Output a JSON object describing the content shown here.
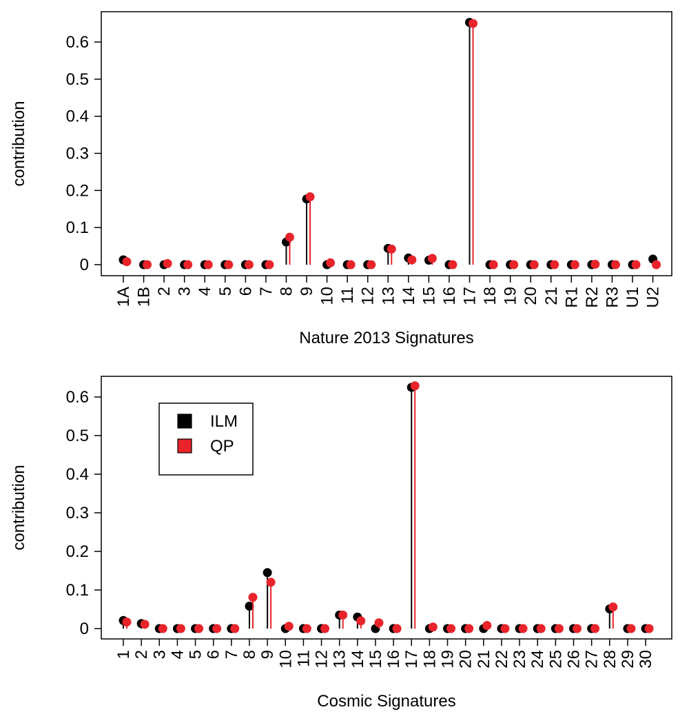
{
  "chart_data": [
    {
      "type": "scatter",
      "xlabel": "Nature 2013 Signatures",
      "ylabel": "contribution",
      "ylim": [
        0,
        0.65
      ],
      "yticks": [
        "0",
        "0.1",
        "0.2",
        "0.3",
        "0.4",
        "0.5",
        "0.6"
      ],
      "grid": false,
      "categories": [
        "1A",
        "1B",
        "2",
        "3",
        "4",
        "5",
        "6",
        "7",
        "8",
        "9",
        "10",
        "11",
        "12",
        "13",
        "14",
        "15",
        "16",
        "17",
        "18",
        "19",
        "20",
        "21",
        "R1",
        "R2",
        "R3",
        "U1",
        "U2"
      ],
      "series": [
        {
          "name": "ILM",
          "color": "#000000",
          "values": [
            0.013,
            0,
            0,
            0,
            0,
            0,
            0,
            0,
            0.061,
            0.177,
            0,
            0,
            0,
            0.044,
            0.018,
            0.012,
            0,
            0.653,
            0,
            0,
            0,
            0,
            0,
            0,
            0,
            0,
            0.015
          ]
        },
        {
          "name": "QP",
          "color": "#e8242a",
          "values": [
            0.008,
            0,
            0.003,
            0,
            0,
            0,
            0,
            0,
            0.074,
            0.183,
            0.005,
            0,
            0,
            0.042,
            0.013,
            0.017,
            0,
            0.65,
            0,
            0,
            0,
            0,
            0,
            0.001,
            0,
            0,
            0
          ]
        }
      ]
    },
    {
      "type": "scatter",
      "xlabel": "Cosmic Signatures",
      "ylabel": "contribution",
      "ylim": [
        0,
        0.65
      ],
      "yticks": [
        "0",
        "0.1",
        "0.2",
        "0.3",
        "0.4",
        "0.5",
        "0.6"
      ],
      "grid": false,
      "legend": {
        "position": "top-left",
        "entries": [
          {
            "label": "ILM",
            "color": "#000000"
          },
          {
            "label": "QP",
            "color": "#e8242a"
          }
        ]
      },
      "categories": [
        "1",
        "2",
        "3",
        "4",
        "5",
        "6",
        "7",
        "8",
        "9",
        "10",
        "11",
        "12",
        "13",
        "14",
        "15",
        "16",
        "17",
        "18",
        "19",
        "20",
        "21",
        "22",
        "23",
        "24",
        "25",
        "26",
        "27",
        "28",
        "29",
        "30"
      ],
      "series": [
        {
          "name": "ILM",
          "color": "#000000",
          "values": [
            0.021,
            0.013,
            0,
            0,
            0,
            0,
            0,
            0.058,
            0.145,
            0,
            0,
            0,
            0.035,
            0.03,
            0,
            0,
            0.625,
            0,
            0,
            0,
            0,
            0,
            0,
            0,
            0,
            0,
            0,
            0.051,
            0,
            0
          ]
        },
        {
          "name": "QP",
          "color": "#e8242a",
          "values": [
            0.017,
            0.011,
            0,
            0,
            0,
            0,
            0,
            0.081,
            0.12,
            0.006,
            0,
            0,
            0.035,
            0.02,
            0.015,
            0,
            0.629,
            0.004,
            0,
            0,
            0.008,
            0,
            0,
            0,
            0,
            0,
            0,
            0.056,
            0,
            0
          ]
        }
      ]
    }
  ]
}
